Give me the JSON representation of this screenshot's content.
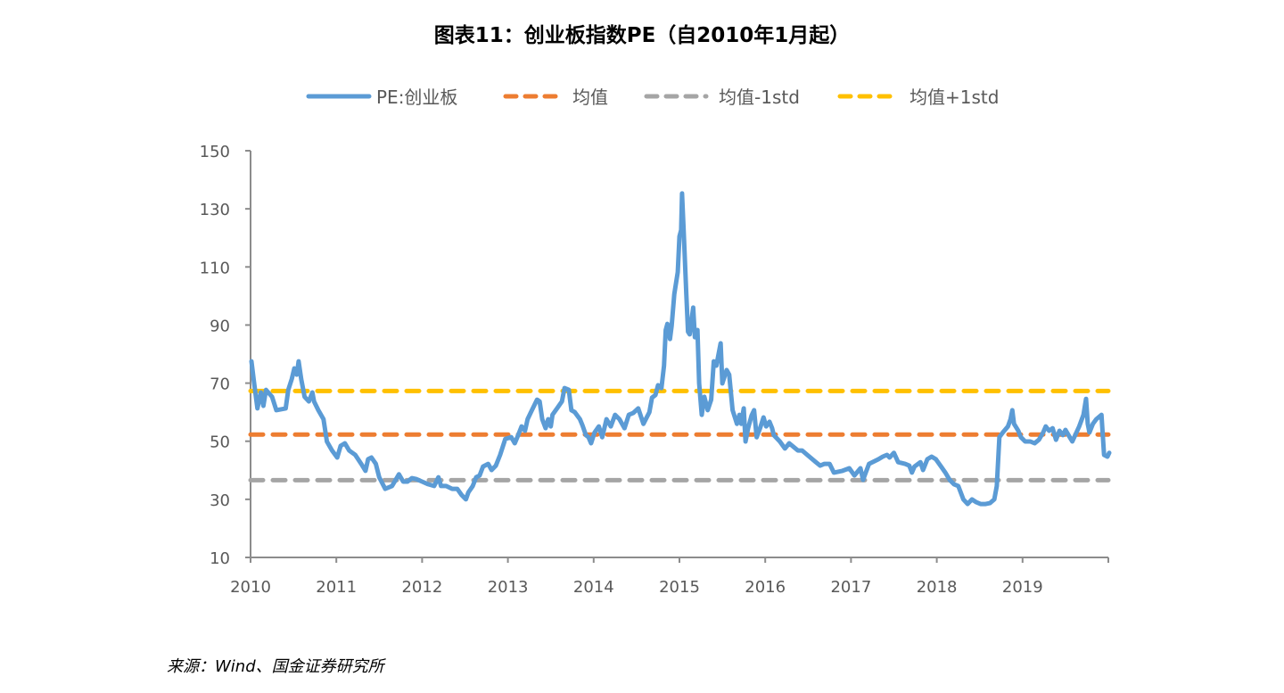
{
  "chart_data": {
    "type": "line",
    "title": "图表11：创业板指数PE（自2010年1月起）",
    "source": "来源：Wind、国金证券研究所",
    "xlabel": "",
    "ylabel": "",
    "xlim": [
      2010,
      2020
    ],
    "ylim": [
      10,
      150
    ],
    "x_ticks": [
      "2010",
      "2011",
      "2012",
      "2013",
      "2014",
      "2015",
      "2016",
      "2017",
      "2018",
      "2019"
    ],
    "y_ticks": [
      10,
      30,
      50,
      70,
      90,
      110,
      130,
      150
    ],
    "grid": false,
    "legend_position": "top",
    "series": [
      {
        "name": "PE:创业板",
        "style": "solid",
        "color": "#5B9BD5",
        "points": [
          [
            2010.01,
            77.5
          ],
          [
            2010.04,
            70.5
          ],
          [
            2010.08,
            61.3
          ],
          [
            2010.12,
            66.8
          ],
          [
            2010.15,
            62.2
          ],
          [
            2010.18,
            67.7
          ],
          [
            2010.25,
            65.3
          ],
          [
            2010.3,
            60.7
          ],
          [
            2010.41,
            61.3
          ],
          [
            2010.44,
            67.7
          ],
          [
            2010.48,
            71.4
          ],
          [
            2010.51,
            75.1
          ],
          [
            2010.54,
            72.9
          ],
          [
            2010.56,
            77.5
          ],
          [
            2010.59,
            71.4
          ],
          [
            2010.63,
            65.3
          ],
          [
            2010.68,
            63.7
          ],
          [
            2010.72,
            66.8
          ],
          [
            2010.74,
            63.7
          ],
          [
            2010.79,
            60.7
          ],
          [
            2010.85,
            57.6
          ],
          [
            2010.89,
            49.9
          ],
          [
            2010.95,
            46.8
          ],
          [
            2011.01,
            44.4
          ],
          [
            2011.05,
            48.4
          ],
          [
            2011.1,
            49.3
          ],
          [
            2011.15,
            46.8
          ],
          [
            2011.22,
            45.3
          ],
          [
            2011.29,
            42.2
          ],
          [
            2011.34,
            39.8
          ],
          [
            2011.37,
            43.8
          ],
          [
            2011.41,
            44.4
          ],
          [
            2011.46,
            42.2
          ],
          [
            2011.5,
            37.6
          ],
          [
            2011.57,
            33.6
          ],
          [
            2011.65,
            34.6
          ],
          [
            2011.73,
            38.6
          ],
          [
            2011.78,
            36.1
          ],
          [
            2011.83,
            36.1
          ],
          [
            2011.88,
            37.3
          ],
          [
            2011.93,
            37.0
          ],
          [
            2012.0,
            36.1
          ],
          [
            2012.07,
            35.2
          ],
          [
            2012.14,
            34.6
          ],
          [
            2012.19,
            37.6
          ],
          [
            2012.22,
            34.6
          ],
          [
            2012.28,
            34.6
          ],
          [
            2012.35,
            33.6
          ],
          [
            2012.41,
            33.6
          ],
          [
            2012.46,
            31.5
          ],
          [
            2012.51,
            30.0
          ],
          [
            2012.54,
            32.4
          ],
          [
            2012.59,
            34.6
          ],
          [
            2012.63,
            37.6
          ],
          [
            2012.67,
            38.2
          ],
          [
            2012.71,
            41.3
          ],
          [
            2012.77,
            42.2
          ],
          [
            2012.81,
            40.1
          ],
          [
            2012.86,
            41.6
          ],
          [
            2012.91,
            45.3
          ],
          [
            2012.97,
            50.8
          ],
          [
            2013.04,
            51.4
          ],
          [
            2013.08,
            49.3
          ],
          [
            2013.11,
            51.4
          ],
          [
            2013.16,
            55.1
          ],
          [
            2013.2,
            53.6
          ],
          [
            2013.23,
            57.6
          ],
          [
            2013.28,
            60.7
          ],
          [
            2013.34,
            64.3
          ],
          [
            2013.37,
            63.7
          ],
          [
            2013.4,
            57.6
          ],
          [
            2013.44,
            54.5
          ],
          [
            2013.47,
            57.6
          ],
          [
            2013.5,
            55.1
          ],
          [
            2013.52,
            59.1
          ],
          [
            2013.58,
            61.6
          ],
          [
            2013.63,
            63.7
          ],
          [
            2013.66,
            68.3
          ],
          [
            2013.71,
            67.7
          ],
          [
            2013.74,
            60.7
          ],
          [
            2013.78,
            60.0
          ],
          [
            2013.84,
            57.6
          ],
          [
            2013.87,
            55.4
          ],
          [
            2013.91,
            52.1
          ],
          [
            2013.94,
            51.4
          ],
          [
            2013.97,
            49.3
          ],
          [
            2014.01,
            53.0
          ],
          [
            2014.06,
            55.1
          ],
          [
            2014.1,
            51.4
          ],
          [
            2014.15,
            57.6
          ],
          [
            2014.2,
            55.1
          ],
          [
            2014.25,
            59.1
          ],
          [
            2014.3,
            57.6
          ],
          [
            2014.36,
            54.5
          ],
          [
            2014.41,
            59.1
          ],
          [
            2014.46,
            59.7
          ],
          [
            2014.52,
            61.3
          ],
          [
            2014.58,
            56.0
          ],
          [
            2014.65,
            60.0
          ],
          [
            2014.68,
            65.0
          ],
          [
            2014.72,
            65.9
          ],
          [
            2014.75,
            69.3
          ],
          [
            2014.79,
            68.3
          ],
          [
            2014.82,
            76.0
          ],
          [
            2014.84,
            88.3
          ],
          [
            2014.86,
            90.4
          ],
          [
            2014.89,
            85.2
          ],
          [
            2014.91,
            89.8
          ],
          [
            2014.94,
            100.6
          ],
          [
            2014.98,
            108.2
          ],
          [
            2015.0,
            120.5
          ],
          [
            2015.02,
            122.7
          ],
          [
            2015.03,
            135.3
          ],
          [
            2015.05,
            122.0
          ],
          [
            2015.08,
            100.6
          ],
          [
            2015.1,
            87.7
          ],
          [
            2015.12,
            86.8
          ],
          [
            2015.16,
            96.0
          ],
          [
            2015.18,
            85.8
          ],
          [
            2015.21,
            88.3
          ],
          [
            2015.23,
            69.9
          ],
          [
            2015.26,
            59.1
          ],
          [
            2015.29,
            65.3
          ],
          [
            2015.33,
            60.7
          ],
          [
            2015.37,
            64.3
          ],
          [
            2015.4,
            77.5
          ],
          [
            2015.43,
            76.0
          ],
          [
            2015.48,
            83.7
          ],
          [
            2015.5,
            69.9
          ],
          [
            2015.55,
            74.5
          ],
          [
            2015.58,
            72.9
          ],
          [
            2015.62,
            60.7
          ],
          [
            2015.67,
            56.0
          ],
          [
            2015.7,
            59.1
          ],
          [
            2015.72,
            56.0
          ],
          [
            2015.75,
            61.3
          ],
          [
            2015.77,
            49.9
          ],
          [
            2015.8,
            54.5
          ],
          [
            2015.84,
            58.8
          ],
          [
            2015.87,
            60.7
          ],
          [
            2015.9,
            51.4
          ],
          [
            2015.94,
            54.5
          ],
          [
            2015.98,
            58.2
          ],
          [
            2016.01,
            55.1
          ],
          [
            2016.05,
            56.7
          ],
          [
            2016.08,
            54.5
          ],
          [
            2016.1,
            52.1
          ],
          [
            2016.17,
            49.9
          ],
          [
            2016.23,
            47.5
          ],
          [
            2016.28,
            49.3
          ],
          [
            2016.38,
            46.8
          ],
          [
            2016.43,
            46.8
          ],
          [
            2016.49,
            45.3
          ],
          [
            2016.59,
            42.8
          ],
          [
            2016.64,
            41.6
          ],
          [
            2016.69,
            42.2
          ],
          [
            2016.75,
            42.2
          ],
          [
            2016.8,
            39.2
          ],
          [
            2016.9,
            39.8
          ],
          [
            2016.98,
            40.7
          ],
          [
            2017.04,
            38.2
          ],
          [
            2017.11,
            40.7
          ],
          [
            2017.14,
            36.7
          ],
          [
            2017.21,
            42.2
          ],
          [
            2017.32,
            43.8
          ],
          [
            2017.37,
            44.7
          ],
          [
            2017.42,
            45.3
          ],
          [
            2017.45,
            44.4
          ],
          [
            2017.5,
            46.0
          ],
          [
            2017.55,
            42.8
          ],
          [
            2017.63,
            42.2
          ],
          [
            2017.68,
            41.6
          ],
          [
            2017.71,
            39.2
          ],
          [
            2017.74,
            41.3
          ],
          [
            2017.81,
            42.8
          ],
          [
            2017.84,
            40.1
          ],
          [
            2017.89,
            43.8
          ],
          [
            2017.94,
            44.7
          ],
          [
            2017.99,
            43.8
          ],
          [
            2018.05,
            41.3
          ],
          [
            2018.1,
            39.2
          ],
          [
            2018.15,
            36.7
          ],
          [
            2018.2,
            35.2
          ],
          [
            2018.25,
            34.6
          ],
          [
            2018.31,
            30.0
          ],
          [
            2018.36,
            28.4
          ],
          [
            2018.41,
            30.0
          ],
          [
            2018.46,
            29.0
          ],
          [
            2018.51,
            28.4
          ],
          [
            2018.57,
            28.4
          ],
          [
            2018.62,
            28.7
          ],
          [
            2018.67,
            30.0
          ],
          [
            2018.7,
            34.6
          ],
          [
            2018.73,
            51.4
          ],
          [
            2018.77,
            53.0
          ],
          [
            2018.83,
            55.1
          ],
          [
            2018.86,
            57.6
          ],
          [
            2018.88,
            60.7
          ],
          [
            2018.9,
            56.0
          ],
          [
            2018.95,
            53.6
          ],
          [
            2018.98,
            51.4
          ],
          [
            2019.03,
            49.9
          ],
          [
            2019.09,
            49.9
          ],
          [
            2019.14,
            49.3
          ],
          [
            2019.19,
            50.5
          ],
          [
            2019.24,
            53.0
          ],
          [
            2019.27,
            55.1
          ],
          [
            2019.31,
            53.6
          ],
          [
            2019.35,
            54.5
          ],
          [
            2019.39,
            50.5
          ],
          [
            2019.43,
            53.6
          ],
          [
            2019.47,
            52.1
          ],
          [
            2019.5,
            53.9
          ],
          [
            2019.55,
            51.4
          ],
          [
            2019.58,
            49.9
          ],
          [
            2019.66,
            55.1
          ],
          [
            2019.71,
            59.1
          ],
          [
            2019.74,
            64.6
          ],
          [
            2019.76,
            56.0
          ],
          [
            2019.78,
            53.0
          ],
          [
            2019.82,
            56.0
          ],
          [
            2019.86,
            57.6
          ],
          [
            2019.92,
            59.1
          ],
          [
            2019.95,
            45.3
          ],
          [
            2019.99,
            44.7
          ],
          [
            2020.01,
            46.0
          ]
        ]
      },
      {
        "name": "均值",
        "style": "dashed",
        "color": "#ED7D31",
        "value": 52.3
      },
      {
        "name": "均值-1std",
        "style": "dashed",
        "color": "#A5A5A5",
        "value": 36.6
      },
      {
        "name": "均值+1std",
        "style": "dashed",
        "color": "#FFC000",
        "value": 67.3
      }
    ]
  }
}
